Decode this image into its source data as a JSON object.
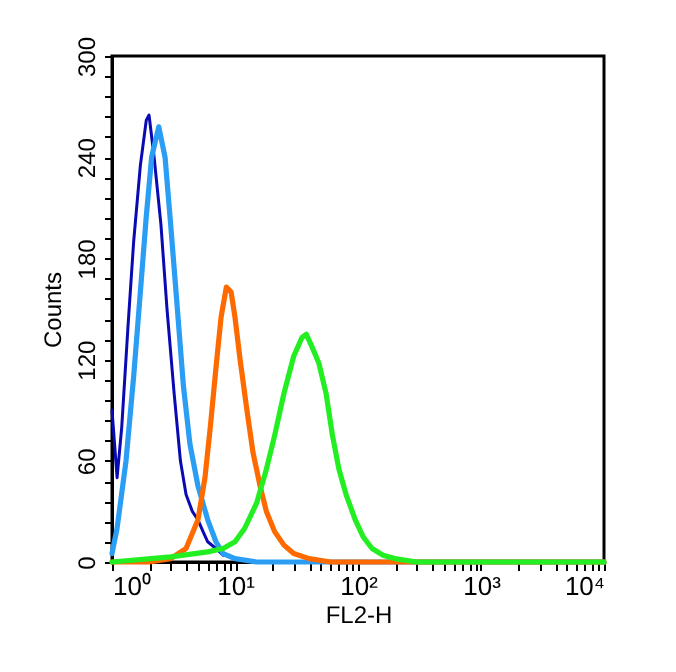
{
  "chart_data": {
    "type": "line",
    "xlabel": "FL2-H",
    "ylabel": "Counts",
    "log": "x",
    "grid": false,
    "xlim": [
      1,
      10000
    ],
    "ylim": [
      0,
      300
    ],
    "xticks": [
      {
        "value": 1,
        "label": "10⁰"
      },
      {
        "value": 2,
        "label": null
      },
      {
        "value": 3,
        "label": null
      },
      {
        "value": 4,
        "label": null
      },
      {
        "value": 5,
        "label": null
      },
      {
        "value": 6,
        "label": null
      },
      {
        "value": 7,
        "label": null
      },
      {
        "value": 8,
        "label": null
      },
      {
        "value": 9,
        "label": null
      },
      {
        "value": 10,
        "label": "10¹"
      },
      {
        "value": 20,
        "label": null
      },
      {
        "value": 30,
        "label": null
      },
      {
        "value": 40,
        "label": null
      },
      {
        "value": 50,
        "label": null
      },
      {
        "value": 60,
        "label": null
      },
      {
        "value": 70,
        "label": null
      },
      {
        "value": 80,
        "label": null
      },
      {
        "value": 90,
        "label": null
      },
      {
        "value": 100,
        "label": "10²"
      },
      {
        "value": 200,
        "label": null
      },
      {
        "value": 300,
        "label": null
      },
      {
        "value": 400,
        "label": null
      },
      {
        "value": 500,
        "label": null
      },
      {
        "value": 600,
        "label": null
      },
      {
        "value": 700,
        "label": null
      },
      {
        "value": 800,
        "label": null
      },
      {
        "value": 900,
        "label": null
      },
      {
        "value": 1000,
        "label": "10³"
      },
      {
        "value": 2000,
        "label": null
      },
      {
        "value": 3000,
        "label": null
      },
      {
        "value": 4000,
        "label": null
      },
      {
        "value": 5000,
        "label": null
      },
      {
        "value": 6000,
        "label": null
      },
      {
        "value": 7000,
        "label": null
      },
      {
        "value": 8000,
        "label": null
      },
      {
        "value": 9000,
        "label": null
      },
      {
        "value": 10000,
        "label": "10⁴"
      }
    ],
    "yticks": [
      0,
      {
        "value": 12,
        "label": null
      },
      {
        "value": 24,
        "label": null
      },
      {
        "value": 36,
        "label": null
      },
      {
        "value": 48,
        "label": null
      },
      60,
      {
        "value": 72,
        "label": null
      },
      {
        "value": 84,
        "label": null
      },
      {
        "value": 96,
        "label": null
      },
      {
        "value": 108,
        "label": null
      },
      120,
      {
        "value": 132,
        "label": null
      },
      {
        "value": 144,
        "label": null
      },
      {
        "value": 156,
        "label": null
      },
      {
        "value": 168,
        "label": null
      },
      180,
      {
        "value": 192,
        "label": null
      },
      {
        "value": 204,
        "label": null
      },
      {
        "value": 216,
        "label": null
      },
      {
        "value": 228,
        "label": null
      },
      240,
      {
        "value": 252,
        "label": null
      },
      {
        "value": 264,
        "label": null
      },
      {
        "value": 276,
        "label": null
      },
      {
        "value": 288,
        "label": null
      },
      300
    ],
    "series": [
      {
        "color": "#0a0ab4",
        "x": [
          1,
          1.1,
          1.2,
          1.35,
          1.5,
          1.7,
          1.9,
          2,
          2.2,
          2.5,
          2.8,
          3.2,
          3.6,
          4,
          4.5,
          5,
          5.5,
          6,
          7,
          8
        ],
        "values": [
          90,
          50,
          80,
          140,
          190,
          235,
          262,
          265,
          240,
          200,
          150,
          100,
          60,
          40,
          30,
          25,
          18,
          12,
          8,
          4
        ]
      },
      {
        "color": "#2a9df4",
        "x": [
          1,
          1.1,
          1.3,
          1.5,
          1.7,
          1.9,
          2.1,
          2.4,
          2.7,
          3,
          3.4,
          3.8,
          4.3,
          5,
          6,
          7,
          8,
          10,
          15,
          10000
        ],
        "values": [
          5,
          20,
          60,
          110,
          160,
          205,
          240,
          258,
          240,
          200,
          150,
          105,
          70,
          45,
          25,
          12,
          5,
          2,
          0,
          0
        ]
      },
      {
        "color": "#ff6a00",
        "x": [
          1,
          2,
          3,
          4,
          5,
          5.7,
          6.3,
          7,
          7.7,
          8.5,
          9.3,
          10,
          11,
          12.5,
          14,
          16,
          18,
          21,
          25,
          30,
          40,
          60,
          10000
        ],
        "values": [
          0,
          0,
          2,
          8,
          25,
          50,
          80,
          115,
          145,
          163,
          160,
          145,
          120,
          90,
          65,
          45,
          30,
          18,
          10,
          5,
          2,
          0,
          0
        ]
      },
      {
        "color": "#22ee22",
        "x": [
          1,
          3,
          6,
          8,
          10,
          12,
          15,
          18,
          21,
          25,
          30,
          35,
          38,
          42,
          48,
          55,
          62,
          70,
          80,
          95,
          110,
          130,
          160,
          200,
          300,
          10000
        ],
        "values": [
          0,
          3,
          6,
          8,
          12,
          20,
          35,
          55,
          75,
          100,
          122,
          133,
          135,
          128,
          118,
          100,
          75,
          55,
          40,
          25,
          15,
          8,
          4,
          2,
          0,
          0
        ]
      }
    ]
  }
}
